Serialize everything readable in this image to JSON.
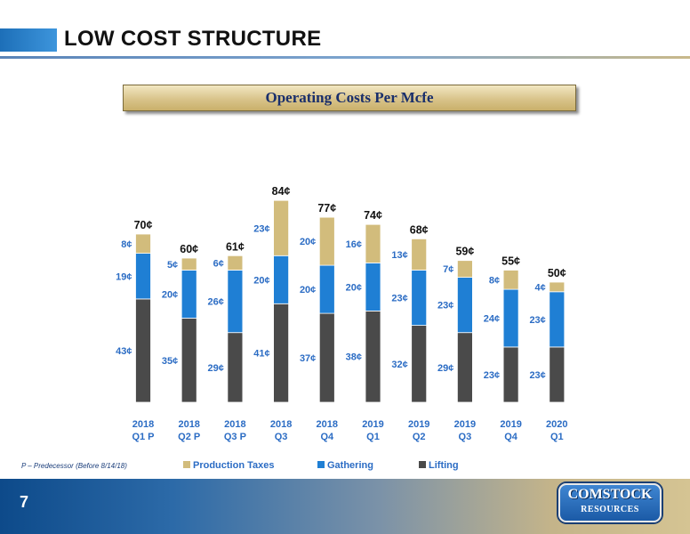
{
  "header": {
    "title": "LOW COST STRUCTURE"
  },
  "chart_title": "Operating Costs Per Mcfe",
  "footnote": "P – Predecessor (Before 8/14/18)",
  "page_number": "7",
  "logo": {
    "line1": "COMSTOCK",
    "line2": "RESOURCES"
  },
  "colors": {
    "lifting": "#4a4a4a",
    "gathering": "#1f7fd4",
    "production_taxes": "#d2bc7c",
    "label": "#2b6cc4"
  },
  "chart_data": {
    "type": "bar",
    "stacked": true,
    "categories": [
      [
        "2018",
        "Q1 P"
      ],
      [
        "2018",
        "Q2 P"
      ],
      [
        "2018",
        "Q3 P"
      ],
      [
        "2018",
        "Q3"
      ],
      [
        "2018",
        "Q4"
      ],
      [
        "2019",
        "Q1"
      ],
      [
        "2019",
        "Q2"
      ],
      [
        "2019",
        "Q3"
      ],
      [
        "2019",
        "Q4"
      ],
      [
        "2020",
        "Q1"
      ]
    ],
    "series": [
      {
        "name": "Lifting",
        "values": [
          43,
          35,
          29,
          41,
          37,
          38,
          32,
          29,
          23,
          23
        ]
      },
      {
        "name": "Gathering",
        "values": [
          19,
          20,
          26,
          20,
          20,
          20,
          23,
          23,
          24,
          23
        ]
      },
      {
        "name": "Production Taxes",
        "values": [
          8,
          5,
          6,
          23,
          20,
          16,
          13,
          7,
          8,
          4
        ]
      }
    ],
    "totals": [
      70,
      60,
      61,
      84,
      77,
      74,
      68,
      59,
      55,
      50
    ],
    "unit": "¢",
    "legend_order": [
      "Production Taxes",
      "Gathering",
      "Lifting"
    ],
    "legend_position": "bottom",
    "grid": false
  }
}
